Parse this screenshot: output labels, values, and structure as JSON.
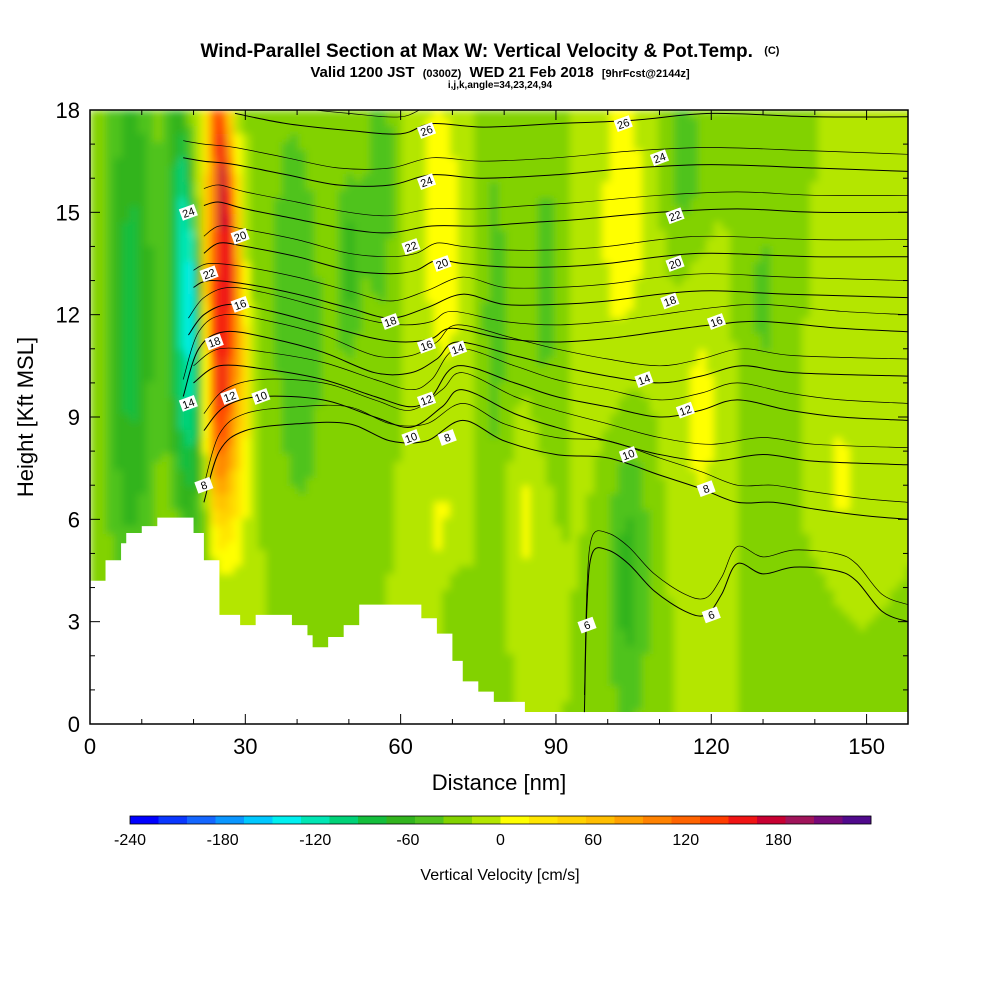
{
  "chart_data": {
    "type": "heatmap",
    "title": "Wind-Parallel Section at Max W: Vertical Velocity & Pot.Temp.",
    "title_mark": "(C)",
    "subtitle_parts": [
      "Valid 1200 JST",
      "(0300Z)",
      "WED 21 Feb 2018",
      "[9hrFcst@2144z]"
    ],
    "subtitle2": "i,j,k,angle=34,23,24,94",
    "xlabel": "Distance [nm]",
    "ylabel": "Height [Kft MSL]",
    "xlim": [
      0,
      158
    ],
    "ylim": [
      0,
      18
    ],
    "xticks": [
      "0",
      "30",
      "60",
      "90",
      "120",
      "150"
    ],
    "xtick_values": [
      0,
      30,
      60,
      90,
      120,
      150
    ],
    "yticks": [
      "0",
      "3",
      "6",
      "9",
      "12",
      "15",
      "18"
    ],
    "ytick_values": [
      0,
      3,
      6,
      9,
      12,
      15,
      18
    ],
    "colorbar": {
      "label": "Vertical Velocity [cm/s]",
      "range": [
        -240,
        220
      ],
      "step": 20,
      "tick_labels": [
        "-240",
        "-180",
        "-120",
        "-60",
        "0",
        "60",
        "120",
        "180"
      ],
      "tick_values": [
        -240,
        -180,
        -120,
        -60,
        0,
        60,
        120,
        180
      ],
      "colors": [
        "#0000ff",
        "#0a37ff",
        "#1466ff",
        "#0a96ff",
        "#00c8ff",
        "#00f0f0",
        "#00e6b4",
        "#00d278",
        "#14be3c",
        "#32b41e",
        "#50c31e",
        "#82d200",
        "#b4e600",
        "#ffff00",
        "#ffe600",
        "#ffd200",
        "#ffbe00",
        "#ffa000",
        "#ff8200",
        "#ff6400",
        "#ff3c00",
        "#f01414",
        "#c80032",
        "#a0145a",
        "#780a78",
        "#500a8c"
      ]
    },
    "terrain": [
      [
        0,
        4.2
      ],
      [
        3,
        4.2
      ],
      [
        3,
        4.8
      ],
      [
        6,
        4.8
      ],
      [
        6,
        5.3
      ],
      [
        7,
        5.3
      ],
      [
        7,
        5.6
      ],
      [
        10,
        5.6
      ],
      [
        10,
        5.8
      ],
      [
        13,
        5.8
      ],
      [
        13,
        6.05
      ],
      [
        20,
        6.05
      ],
      [
        20,
        5.6
      ],
      [
        22,
        5.6
      ],
      [
        22,
        4.8
      ],
      [
        25,
        4.8
      ],
      [
        25,
        3.2
      ],
      [
        29,
        3.2
      ],
      [
        29,
        2.9
      ],
      [
        32,
        2.9
      ],
      [
        32,
        3.2
      ],
      [
        39,
        3.2
      ],
      [
        39,
        2.9
      ],
      [
        42,
        2.9
      ],
      [
        42,
        2.6
      ],
      [
        43,
        2.6
      ],
      [
        43,
        2.25
      ],
      [
        46,
        2.25
      ],
      [
        46,
        2.55
      ],
      [
        49,
        2.55
      ],
      [
        49,
        2.9
      ],
      [
        52,
        2.9
      ],
      [
        52,
        3.5
      ],
      [
        64,
        3.5
      ],
      [
        64,
        3.1
      ],
      [
        67,
        3.1
      ],
      [
        67,
        2.65
      ],
      [
        70,
        2.65
      ],
      [
        70,
        1.85
      ],
      [
        72,
        1.85
      ],
      [
        72,
        1.25
      ],
      [
        75,
        1.25
      ],
      [
        75,
        0.95
      ],
      [
        78,
        0.95
      ],
      [
        78,
        0.65
      ],
      [
        84,
        0.65
      ],
      [
        84,
        0.35
      ],
      [
        158,
        0.35
      ]
    ],
    "theta_contours": [
      {
        "label": "6",
        "points": [
          [
            158,
            3.0
          ],
          [
            153,
            3.3
          ],
          [
            148,
            4.2
          ],
          [
            144,
            4.5
          ],
          [
            136,
            4.6
          ],
          [
            130,
            4.4
          ],
          [
            125,
            4.7
          ],
          [
            122,
            3.8
          ],
          [
            119,
            3.2
          ],
          [
            115,
            3.3
          ],
          [
            109,
            3.9
          ],
          [
            104,
            4.7
          ],
          [
            100,
            5.1
          ],
          [
            97,
            5.0
          ],
          [
            96,
            3.5
          ],
          [
            95.5,
            0.35
          ]
        ]
      },
      {
        "label": "8",
        "points": [
          [
            22,
            6.5
          ],
          [
            25,
            8.0
          ],
          [
            30,
            8.6
          ],
          [
            40,
            8.8
          ],
          [
            50,
            8.8
          ],
          [
            58,
            8.3
          ],
          [
            65,
            8.3
          ],
          [
            72,
            8.9
          ],
          [
            80,
            8.3
          ],
          [
            90,
            7.9
          ],
          [
            100,
            7.8
          ],
          [
            110,
            7.3
          ],
          [
            118,
            6.9
          ],
          [
            125,
            6.5
          ],
          [
            132,
            6.5
          ],
          [
            140,
            6.3
          ],
          [
            150,
            6.1
          ],
          [
            158,
            6.0
          ]
        ]
      },
      {
        "label": "10",
        "points": [
          [
            22,
            8.6
          ],
          [
            26,
            9.3
          ],
          [
            33,
            9.6
          ],
          [
            45,
            9.5
          ],
          [
            55,
            9.0
          ],
          [
            62,
            8.7
          ],
          [
            68,
            9.3
          ],
          [
            72,
            9.8
          ],
          [
            82,
            9.1
          ],
          [
            90,
            8.7
          ],
          [
            100,
            8.3
          ],
          [
            110,
            7.9
          ],
          [
            120,
            7.7
          ],
          [
            130,
            7.9
          ],
          [
            140,
            7.7
          ],
          [
            158,
            7.6
          ]
        ]
      },
      {
        "label": "12",
        "points": [
          [
            20,
            10.0
          ],
          [
            25,
            10.5
          ],
          [
            34,
            10.4
          ],
          [
            45,
            10.1
          ],
          [
            55,
            9.6
          ],
          [
            62,
            9.3
          ],
          [
            66,
            9.6
          ],
          [
            71,
            10.5
          ],
          [
            82,
            10.0
          ],
          [
            90,
            9.6
          ],
          [
            100,
            9.3
          ],
          [
            110,
            9.0
          ],
          [
            118,
            9.2
          ],
          [
            125,
            9.5
          ],
          [
            135,
            9.2
          ],
          [
            145,
            9.0
          ],
          [
            158,
            8.9
          ]
        ]
      },
      {
        "label": "14",
        "points": [
          [
            18,
            9.6
          ],
          [
            21,
            11.0
          ],
          [
            26,
            11.5
          ],
          [
            35,
            11.3
          ],
          [
            45,
            10.9
          ],
          [
            55,
            10.3
          ],
          [
            62,
            10.3
          ],
          [
            67,
            10.7
          ],
          [
            71,
            11.2
          ],
          [
            82,
            10.8
          ],
          [
            90,
            10.5
          ],
          [
            100,
            10.2
          ],
          [
            110,
            10.0
          ],
          [
            118,
            10.2
          ],
          [
            126,
            10.5
          ],
          [
            136,
            10.3
          ],
          [
            158,
            10.2
          ]
        ]
      },
      {
        "label": "16",
        "points": [
          [
            19,
            11.4
          ],
          [
            22,
            12.0
          ],
          [
            27,
            12.3
          ],
          [
            35,
            12.1
          ],
          [
            45,
            11.7
          ],
          [
            55,
            11.3
          ],
          [
            61,
            11.2
          ],
          [
            66,
            11.3
          ],
          [
            70,
            11.6
          ],
          [
            80,
            11.3
          ],
          [
            90,
            11.2
          ],
          [
            100,
            11.3
          ],
          [
            110,
            11.5
          ],
          [
            120,
            11.7
          ],
          [
            130,
            11.8
          ],
          [
            145,
            11.6
          ],
          [
            158,
            11.5
          ]
        ]
      },
      {
        "label": "18",
        "points": [
          [
            20,
            12.8
          ],
          [
            23,
            13.0
          ],
          [
            30,
            12.9
          ],
          [
            40,
            12.6
          ],
          [
            50,
            12.2
          ],
          [
            58,
            11.9
          ],
          [
            65,
            12.2
          ],
          [
            72,
            12.6
          ],
          [
            80,
            12.3
          ],
          [
            90,
            12.3
          ],
          [
            100,
            12.4
          ],
          [
            110,
            12.6
          ],
          [
            120,
            12.7
          ],
          [
            135,
            12.6
          ],
          [
            158,
            12.5
          ]
        ]
      },
      {
        "label": "20",
        "points": [
          [
            22,
            13.8
          ],
          [
            25,
            14.1
          ],
          [
            30,
            14.0
          ],
          [
            40,
            13.7
          ],
          [
            50,
            13.3
          ],
          [
            58,
            13.2
          ],
          [
            63,
            13.3
          ],
          [
            67,
            13.6
          ],
          [
            72,
            13.5
          ],
          [
            80,
            13.4
          ],
          [
            90,
            13.4
          ],
          [
            100,
            13.5
          ],
          [
            110,
            13.7
          ],
          [
            120,
            13.8
          ],
          [
            140,
            13.7
          ],
          [
            158,
            13.7
          ]
        ]
      },
      {
        "label": "22",
        "points": [
          [
            22,
            15.2
          ],
          [
            25,
            15.3
          ],
          [
            30,
            15.1
          ],
          [
            40,
            14.8
          ],
          [
            50,
            14.5
          ],
          [
            58,
            14.4
          ],
          [
            66,
            14.6
          ],
          [
            75,
            14.6
          ],
          [
            85,
            14.7
          ],
          [
            95,
            14.8
          ],
          [
            110,
            15.0
          ],
          [
            125,
            15.1
          ],
          [
            140,
            15.0
          ],
          [
            158,
            15.0
          ]
        ]
      },
      {
        "label": "24",
        "points": [
          [
            18,
            16.6
          ],
          [
            22,
            16.5
          ],
          [
            28,
            16.4
          ],
          [
            38,
            16.1
          ],
          [
            48,
            15.8
          ],
          [
            58,
            15.8
          ],
          [
            66,
            16.1
          ],
          [
            76,
            16.0
          ],
          [
            90,
            16.1
          ],
          [
            105,
            16.3
          ],
          [
            120,
            16.4
          ],
          [
            140,
            16.3
          ],
          [
            158,
            16.2
          ]
        ]
      },
      {
        "label": "26",
        "points": [
          [
            28,
            17.9
          ],
          [
            38,
            17.6
          ],
          [
            50,
            17.4
          ],
          [
            60,
            17.3
          ],
          [
            66,
            17.6
          ],
          [
            76,
            17.5
          ],
          [
            90,
            17.6
          ],
          [
            105,
            17.7
          ],
          [
            120,
            17.9
          ],
          [
            140,
            17.8
          ],
          [
            158,
            17.8
          ]
        ]
      }
    ],
    "contour_labels": [
      {
        "text": "26",
        "x": 65,
        "y": 17.4
      },
      {
        "text": "26",
        "x": 103,
        "y": 17.6
      },
      {
        "text": "24",
        "x": 65,
        "y": 15.9
      },
      {
        "text": "24",
        "x": 110,
        "y": 16.6
      },
      {
        "text": "24",
        "x": 19,
        "y": 15.0
      },
      {
        "text": "22",
        "x": 62,
        "y": 14.0
      },
      {
        "text": "22",
        "x": 113,
        "y": 14.9
      },
      {
        "text": "22",
        "x": 23,
        "y": 13.2
      },
      {
        "text": "20",
        "x": 29,
        "y": 14.3
      },
      {
        "text": "20",
        "x": 68,
        "y": 13.5
      },
      {
        "text": "20",
        "x": 113,
        "y": 13.5
      },
      {
        "text": "18",
        "x": 58,
        "y": 11.8
      },
      {
        "text": "18",
        "x": 112,
        "y": 12.4
      },
      {
        "text": "18",
        "x": 24,
        "y": 11.2
      },
      {
        "text": "16",
        "x": 29,
        "y": 12.3
      },
      {
        "text": "16",
        "x": 65,
        "y": 11.1
      },
      {
        "text": "16",
        "x": 121,
        "y": 11.8
      },
      {
        "text": "14",
        "x": 71,
        "y": 11.0
      },
      {
        "text": "14",
        "x": 107,
        "y": 10.1
      },
      {
        "text": "14",
        "x": 19,
        "y": 9.4
      },
      {
        "text": "12",
        "x": 27,
        "y": 9.6
      },
      {
        "text": "12",
        "x": 65,
        "y": 9.5
      },
      {
        "text": "12",
        "x": 115,
        "y": 9.2
      },
      {
        "text": "10",
        "x": 33,
        "y": 9.6
      },
      {
        "text": "10",
        "x": 62,
        "y": 8.4
      },
      {
        "text": "10",
        "x": 104,
        "y": 7.9
      },
      {
        "text": "8",
        "x": 69,
        "y": 8.4
      },
      {
        "text": "8",
        "x": 22,
        "y": 7.0
      },
      {
        "text": "8",
        "x": 119,
        "y": 6.9
      },
      {
        "text": "6",
        "x": 96,
        "y": 2.9
      },
      {
        "text": "6",
        "x": 120,
        "y": 3.2
      }
    ],
    "velocity_blobs": [
      {
        "x": 26,
        "y": 15.5,
        "sx": 1.6,
        "sy": 4.0,
        "tilt": -0.45,
        "v": 200
      },
      {
        "x": 25,
        "y": 11.0,
        "sx": 1.6,
        "sy": 3.0,
        "tilt": -0.45,
        "v": 170
      },
      {
        "x": 24,
        "y": 8.0,
        "sx": 1.4,
        "sy": 2.0,
        "tilt": -0.3,
        "v": 100
      },
      {
        "x": 19,
        "y": 13.5,
        "sx": 1.6,
        "sy": 3.5,
        "tilt": -0.45,
        "v": -110
      },
      {
        "x": 18,
        "y": 9.5,
        "sx": 2.0,
        "sy": 3.0,
        "tilt": -0.3,
        "v": -80
      },
      {
        "x": 8,
        "y": 12.0,
        "sx": 3.5,
        "sy": 6.0,
        "tilt": 0,
        "v": -70
      },
      {
        "x": 40,
        "y": 12.0,
        "sx": 4.0,
        "sy": 5.0,
        "tilt": -0.15,
        "v": -35
      },
      {
        "x": 50,
        "y": 13.5,
        "sx": 1.8,
        "sy": 2.0,
        "tilt": 0,
        "v": -45
      },
      {
        "x": 56,
        "y": 16.0,
        "sx": 2.2,
        "sy": 3.5,
        "tilt": 0,
        "v": -35
      },
      {
        "x": 68,
        "y": 14.5,
        "sx": 4.0,
        "sy": 4.5,
        "tilt": -0.2,
        "v": 28
      },
      {
        "x": 68,
        "y": 5.0,
        "sx": 3.0,
        "sy": 2.0,
        "tilt": 0,
        "v": 22
      },
      {
        "x": 78,
        "y": 12.0,
        "sx": 2.5,
        "sy": 5.0,
        "tilt": 0,
        "v": -28
      },
      {
        "x": 70,
        "y": 3.0,
        "sx": 2.0,
        "sy": 1.5,
        "tilt": 0,
        "v": -30
      },
      {
        "x": 88,
        "y": 13.0,
        "sx": 2.2,
        "sy": 3.0,
        "tilt": 0,
        "v": -30
      },
      {
        "x": 84,
        "y": 6.0,
        "sx": 2.5,
        "sy": 2.0,
        "tilt": 0,
        "v": 25
      },
      {
        "x": 104,
        "y": 4.5,
        "sx": 3.0,
        "sy": 3.5,
        "tilt": 0,
        "v": -50
      },
      {
        "x": 103,
        "y": 14.5,
        "sx": 4.0,
        "sy": 4.5,
        "tilt": 0,
        "v": 30
      },
      {
        "x": 115,
        "y": 16.5,
        "sx": 3.0,
        "sy": 2.0,
        "tilt": 0,
        "v": -30
      },
      {
        "x": 118,
        "y": 9.0,
        "sx": 3.5,
        "sy": 3.0,
        "tilt": 0,
        "v": 25
      },
      {
        "x": 130,
        "y": 12.5,
        "sx": 3.0,
        "sy": 4.0,
        "tilt": 0,
        "v": -22
      },
      {
        "x": 145,
        "y": 7.0,
        "sx": 3.0,
        "sy": 3.0,
        "tilt": 0,
        "v": 22
      },
      {
        "x": 142,
        "y": 2.0,
        "sx": 4.0,
        "sy": 1.8,
        "tilt": 0,
        "v": -18
      },
      {
        "x": 150,
        "y": 14.0,
        "sx": 2.5,
        "sy": 3.0,
        "tilt": 0,
        "v": 20
      }
    ]
  }
}
